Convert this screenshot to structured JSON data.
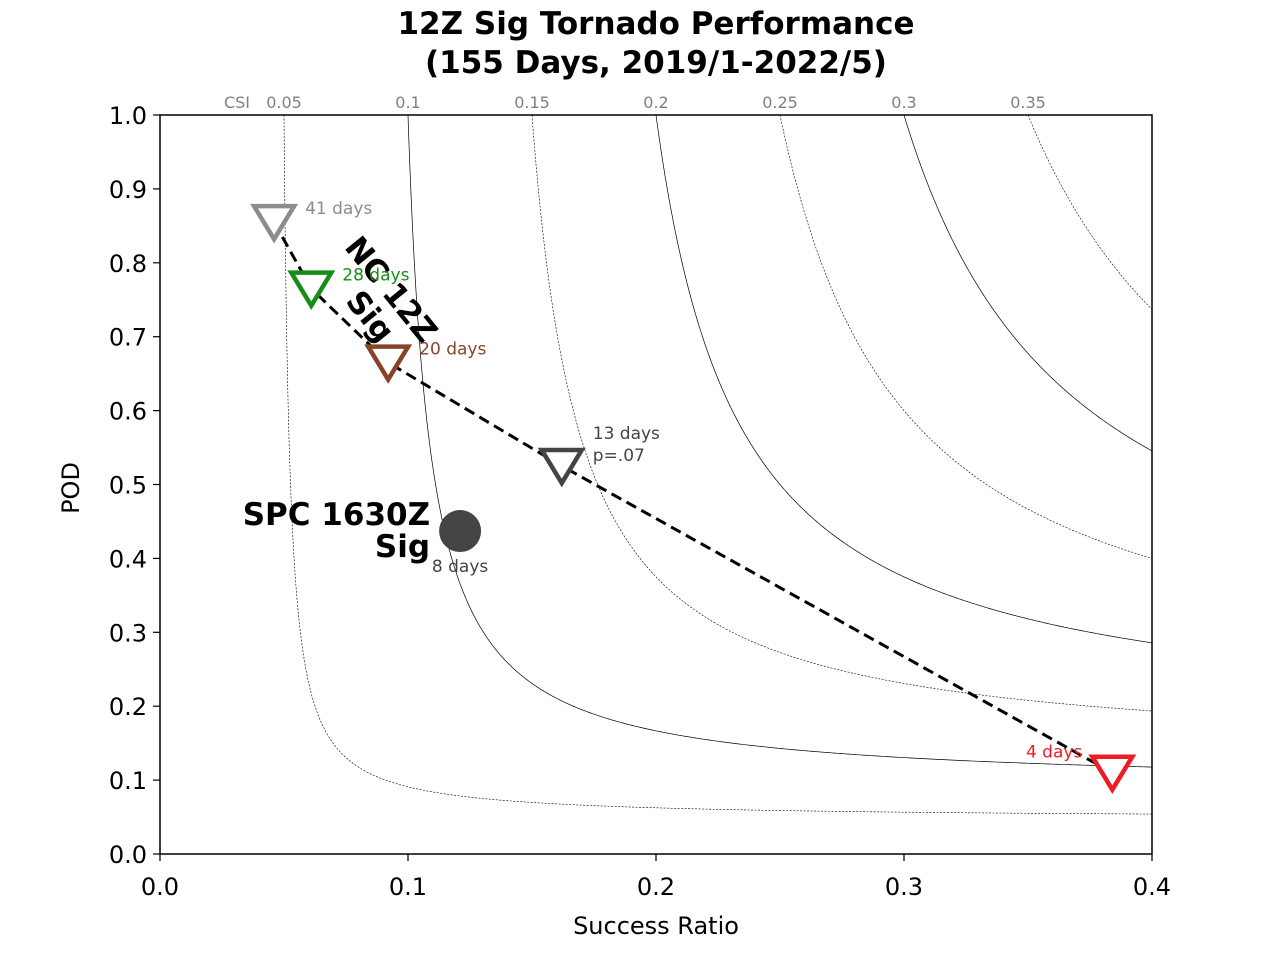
{
  "chart_data": {
    "type": "scatter",
    "title_line1": "12Z Sig Tornado Performance",
    "title_line2": "(155 Days, 2019/1-2022/5)",
    "xlabel": "Success Ratio",
    "ylabel": "POD",
    "xlim": [
      0.0,
      0.4
    ],
    "ylim": [
      0.0,
      1.0
    ],
    "x_ticks": [
      0.0,
      0.1,
      0.2,
      0.3,
      0.4
    ],
    "x_tick_labels": [
      "0.0",
      "0.1",
      "0.2",
      "0.3",
      "0.4"
    ],
    "y_ticks": [
      0.0,
      0.1,
      0.2,
      0.3,
      0.4,
      0.5,
      0.6,
      0.7,
      0.8,
      0.9,
      1.0
    ],
    "y_tick_labels": [
      "0.0",
      "0.1",
      "0.2",
      "0.3",
      "0.4",
      "0.5",
      "0.6",
      "0.7",
      "0.8",
      "0.9",
      "1.0"
    ],
    "csi": {
      "prefix_label": "CSI",
      "values": [
        0.05,
        0.1,
        0.15,
        0.2,
        0.25,
        0.3,
        0.35
      ],
      "labels": [
        "0.05",
        "0.1",
        "0.15",
        "0.2",
        "0.25",
        "0.3",
        "0.35"
      ],
      "dashed": [
        true,
        false,
        true,
        false,
        true,
        false,
        true
      ]
    },
    "series": [
      {
        "name": "NC 12Z Sig",
        "label_line1": "NC 12Z",
        "label_line2": "Sig",
        "marker": "triangle-down",
        "line_style": "dashed",
        "points": [
          {
            "sr": 0.046,
            "pod": 0.855,
            "label": "41 days",
            "color": "#8c8c8c"
          },
          {
            "sr": 0.061,
            "pod": 0.765,
            "label": "28 days",
            "color": "#168d16"
          },
          {
            "sr": 0.092,
            "pod": 0.665,
            "label": "20 days",
            "color": "#87442a"
          },
          {
            "sr": 0.162,
            "pod": 0.525,
            "label": "13 days",
            "label2": "p=.07",
            "color": "#444444"
          },
          {
            "sr": 0.384,
            "pod": 0.11,
            "label": "4 days",
            "color": "#ee1c25"
          }
        ]
      },
      {
        "name": "SPC 1630Z Sig",
        "label_line1": "SPC 1630Z",
        "label_line2": "Sig",
        "marker": "circle",
        "points": [
          {
            "sr": 0.121,
            "pod": 0.437,
            "label": "8 days",
            "color": "#444444"
          }
        ]
      }
    ]
  }
}
